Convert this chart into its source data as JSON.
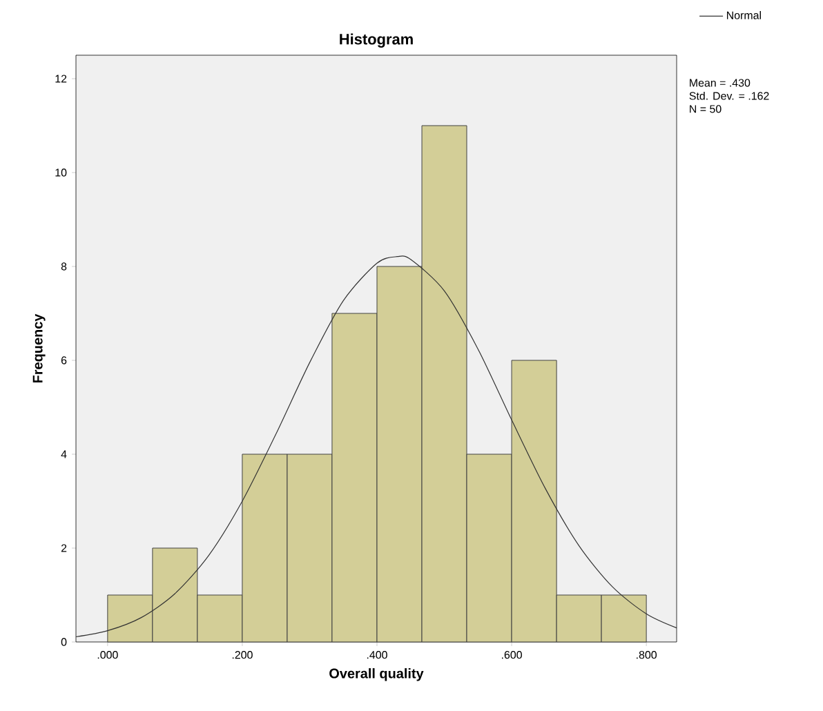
{
  "chart_data": {
    "type": "histogram",
    "title": "Histogram",
    "xlabel": "Overall quality",
    "ylabel": "Frequency",
    "bins": [
      0,
      0.0667,
      0.1333,
      0.2,
      0.2667,
      0.3333,
      0.4,
      0.4667,
      0.5333,
      0.6,
      0.6667,
      0.7333,
      0.8
    ],
    "values": [
      1,
      2,
      1,
      4,
      4,
      7,
      8,
      11,
      4,
      6,
      1,
      1
    ],
    "color": "#d3ce97",
    "series": [
      {
        "type": "line",
        "name": "Normal",
        "color": "#333333",
        "x": [
          -0.047,
          0,
          0.05,
          0.1,
          0.15,
          0.2,
          0.25,
          0.3,
          0.35,
          0.4,
          0.43,
          0.45,
          0.5,
          0.55,
          0.6,
          0.65,
          0.7,
          0.75,
          0.8,
          0.845
        ],
        "values": [
          0.11,
          0.24,
          0.52,
          1.03,
          1.84,
          3.0,
          4.43,
          5.95,
          7.27,
          8.07,
          8.21,
          8.15,
          7.48,
          6.24,
          4.73,
          3.27,
          2.05,
          1.17,
          0.6,
          0.3
        ]
      }
    ],
    "xlim": [
      -0.047,
      0.845
    ],
    "ylim": [
      0,
      12.5
    ],
    "xticks": [
      {
        "value": 0,
        "label": ".000"
      },
      {
        "value": 0.2,
        "label": ".200"
      },
      {
        "value": 0.4,
        "label": ".400"
      },
      {
        "value": 0.6,
        "label": ".600"
      },
      {
        "value": 0.8,
        "label": ".800"
      }
    ],
    "yticks": [
      0,
      2,
      4,
      6,
      8,
      10,
      12
    ],
    "legend": "top right",
    "grid": false,
    "annotations": [
      "Mean = .430",
      "Std. Dev. = .162",
      "N = 50"
    ]
  }
}
